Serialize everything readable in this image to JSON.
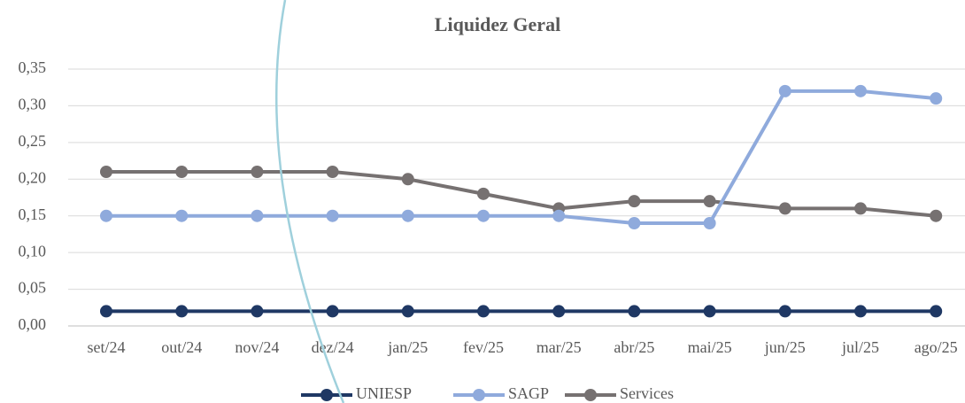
{
  "chart_data": {
    "type": "line",
    "title": "Liquidez Geral",
    "categories": [
      "set/24",
      "out/24",
      "nov/24",
      "dez/24",
      "jan/25",
      "fev/25",
      "mar/25",
      "abr/25",
      "mai/25",
      "jun/25",
      "jul/25",
      "ago/25"
    ],
    "series": [
      {
        "name": "UNIESP",
        "color": "#1f3864",
        "values": [
          0.02,
          0.02,
          0.02,
          0.02,
          0.02,
          0.02,
          0.02,
          0.02,
          0.02,
          0.02,
          0.02,
          0.02
        ]
      },
      {
        "name": "SAGP",
        "color": "#8faadc",
        "values": [
          0.15,
          0.15,
          0.15,
          0.15,
          0.15,
          0.15,
          0.15,
          0.14,
          0.14,
          0.32,
          0.32,
          0.31
        ]
      },
      {
        "name": "Services",
        "color": "#767171",
        "values": [
          0.21,
          0.21,
          0.21,
          0.21,
          0.2,
          0.18,
          0.16,
          0.17,
          0.17,
          0.16,
          0.16,
          0.15
        ]
      }
    ],
    "ylim": [
      0,
      0.35
    ],
    "yticks": [
      {
        "value": 0,
        "label": "0,00"
      },
      {
        "value": 0.05,
        "label": "0,05"
      },
      {
        "value": 0.1,
        "label": "0,10"
      },
      {
        "value": 0.15,
        "label": "0,15"
      },
      {
        "value": 0.2,
        "label": "0,20"
      },
      {
        "value": 0.25,
        "label": "0,25"
      },
      {
        "value": 0.3,
        "label": "0,30"
      },
      {
        "value": 0.35,
        "label": "0,35"
      }
    ],
    "grid": true,
    "legend": "bottom"
  }
}
